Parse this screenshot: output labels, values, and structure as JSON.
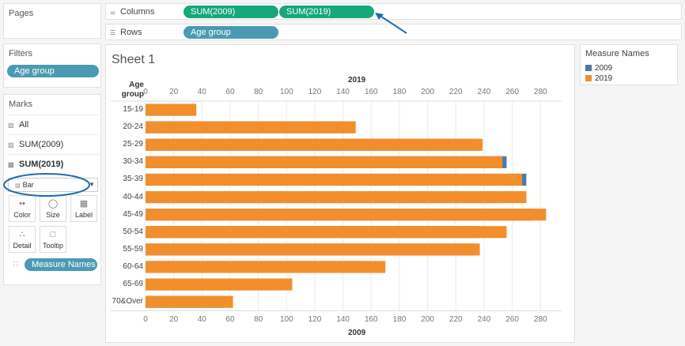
{
  "panels": {
    "pages": {
      "title": "Pages"
    },
    "filters": {
      "title": "Filters",
      "pills": [
        "Age group"
      ]
    },
    "marks": {
      "title": "Marks",
      "rows": [
        "All",
        "SUM(2009)",
        "SUM(2019)"
      ],
      "mark_type": "Bar",
      "buttons": [
        "Color",
        "Size",
        "Label",
        "Detail",
        "Tooltip"
      ],
      "field_pill": "Measure Names"
    }
  },
  "shelves": {
    "columns": {
      "label": "Columns",
      "pills": [
        "SUM(2009)",
        "SUM(2019)"
      ]
    },
    "rows": {
      "label": "Rows",
      "pills": [
        "Age group"
      ]
    }
  },
  "sheet": {
    "title": "Sheet 1"
  },
  "legend": {
    "title": "Measure Names",
    "items": [
      {
        "label": "2009",
        "color": "#4e79a7"
      },
      {
        "label": "2019",
        "color": "#f28e2b"
      }
    ]
  },
  "chart_data": {
    "type": "bar",
    "orientation": "horizontal",
    "row_header": [
      "Age",
      "group"
    ],
    "categories": [
      "15-19",
      "20-24",
      "25-29",
      "30-34",
      "35-39",
      "40-44",
      "45-49",
      "50-54",
      "55-59",
      "60-64",
      "65-69",
      "70&Over"
    ],
    "series": [
      {
        "name": "2009",
        "color": "#4e79a7",
        "axis": "bottom",
        "values": [
          33,
          146,
          236,
          256,
          270,
          253,
          273,
          236,
          233,
          153,
          92,
          56
        ]
      },
      {
        "name": "2019",
        "color": "#f28e2b",
        "axis": "top",
        "values": [
          36,
          149,
          239,
          253,
          267,
          270,
          284,
          256,
          237,
          170,
          104,
          62
        ]
      }
    ],
    "top_axis": {
      "title": "2019",
      "ticks": [
        0,
        20,
        40,
        60,
        80,
        100,
        120,
        140,
        160,
        180,
        200,
        220,
        240,
        260,
        280
      ],
      "range": [
        0,
        295
      ]
    },
    "bottom_axis": {
      "title": "2009",
      "ticks": [
        0,
        20,
        40,
        60,
        80,
        100,
        120,
        140,
        160,
        180,
        200,
        220,
        240,
        260,
        280
      ],
      "range": [
        0,
        295
      ]
    },
    "grid": true
  }
}
